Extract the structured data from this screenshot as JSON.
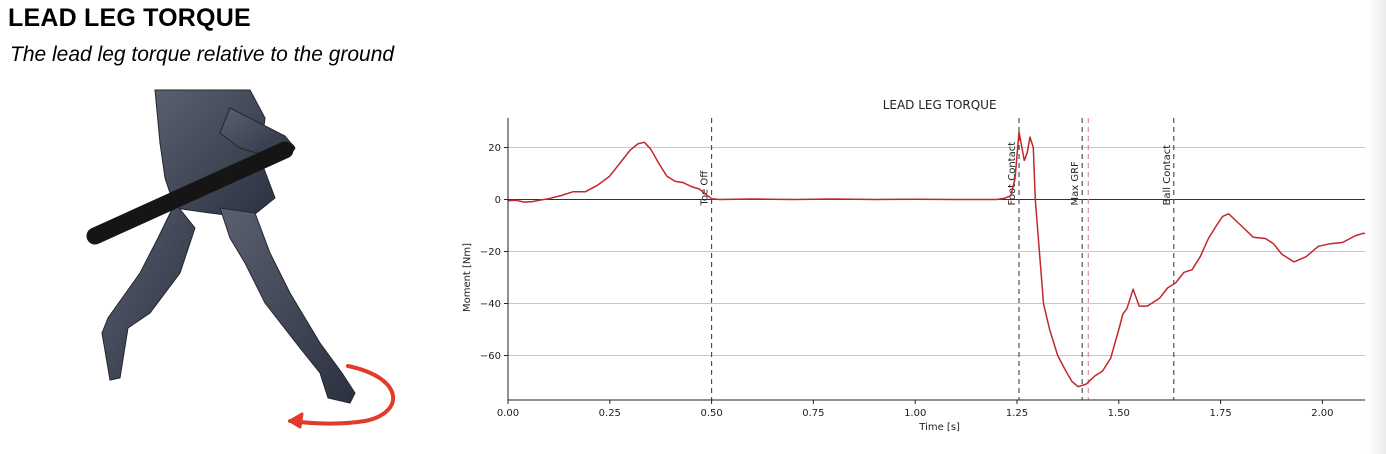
{
  "header": {
    "title": "LEAD LEG TORQUE",
    "subtitle": "The lead leg torque relative to the ground"
  },
  "figure": {
    "icon": "batter-figure-icon",
    "arrow_icon": "rotation-arrow-icon",
    "arrow_color": "#e23b2a",
    "body_color": "#3b4050"
  },
  "chart_data": {
    "type": "line",
    "title": "LEAD LEG TORQUE",
    "xlabel": "Time [s]",
    "ylabel": "Moment [Nm]",
    "xlim": [
      0.0,
      2.13
    ],
    "ylim": [
      -80,
      32
    ],
    "xticks": [
      0.0,
      0.25,
      0.5,
      0.75,
      1.0,
      1.25,
      1.5,
      1.75,
      2.0
    ],
    "xtick_labels": [
      "0.00",
      "0.25",
      "0.50",
      "0.75",
      "1.00",
      "1.25",
      "1.50",
      "1.75",
      "2.00"
    ],
    "yticks": [
      20,
      0,
      -20,
      -40,
      -60
    ],
    "ytick_labels": [
      "20",
      "0",
      "−20",
      "−40",
      "−60"
    ],
    "grid": "horizontal",
    "series": [
      {
        "color": "#c0282a",
        "x": [
          0.0,
          0.02,
          0.04,
          0.06,
          0.08,
          0.1,
          0.13,
          0.16,
          0.19,
          0.22,
          0.25,
          0.28,
          0.3,
          0.32,
          0.335,
          0.35,
          0.37,
          0.39,
          0.41,
          0.43,
          0.45,
          0.47,
          0.49,
          0.5,
          0.52,
          0.6,
          0.7,
          0.8,
          0.9,
          1.0,
          1.1,
          1.2,
          1.22,
          1.235,
          1.245,
          1.255,
          1.262,
          1.268,
          1.275,
          1.282,
          1.29,
          1.295,
          1.305,
          1.315,
          1.33,
          1.35,
          1.37,
          1.385,
          1.4,
          1.42,
          1.44,
          1.46,
          1.48,
          1.5,
          1.51,
          1.52,
          1.535,
          1.55,
          1.57,
          1.6,
          1.62,
          1.64,
          1.65,
          1.66,
          1.68,
          1.7,
          1.72,
          1.74,
          1.755,
          1.77,
          1.8,
          1.83,
          1.86,
          1.88,
          1.9,
          1.93,
          1.96,
          1.99,
          2.02,
          2.05,
          2.08,
          2.1,
          2.13
        ],
        "y": [
          -0.5,
          -0.3,
          -1.0,
          -0.8,
          -0.2,
          0.3,
          1.5,
          3.0,
          3.0,
          5.5,
          9.0,
          15.0,
          19.0,
          21.5,
          22.0,
          19.5,
          14.0,
          9.0,
          7.0,
          6.5,
          5.0,
          4.0,
          1.5,
          0.3,
          0.0,
          0.2,
          0.0,
          0.2,
          0.0,
          0.1,
          0.0,
          0.0,
          0.5,
          1.5,
          8.0,
          26.0,
          20.0,
          15.0,
          18.0,
          24.0,
          20.0,
          0.0,
          -20.0,
          -40.0,
          -50.0,
          -60.0,
          -66.0,
          -70.0,
          -72.0,
          -71.0,
          -68.0,
          -66.0,
          -61.0,
          -50.0,
          -44.0,
          -42.0,
          -34.5,
          -41.0,
          -41.0,
          -38.0,
          -34.0,
          -32.0,
          -30.0,
          -28.0,
          -27.0,
          -22.0,
          -15.0,
          -10.0,
          -6.5,
          -5.5,
          -10.0,
          -14.5,
          -15.0,
          -17.0,
          -21.0,
          -24.0,
          -22.0,
          -18.0,
          -17.0,
          -16.5,
          -14.0,
          -13.0,
          -13.5
        ]
      }
    ],
    "events": [
      {
        "label": "Toe Off",
        "x": 0.5,
        "color": "#444444"
      },
      {
        "label": "Foot Contact",
        "x": 1.255,
        "color": "#444444"
      },
      {
        "label": "Max GRF",
        "x": 1.41,
        "color": "#444444"
      },
      {
        "label": "",
        "x": 1.425,
        "color": "#e0808a"
      },
      {
        "label": "Ball Contact",
        "x": 1.635,
        "color": "#444444"
      }
    ]
  }
}
